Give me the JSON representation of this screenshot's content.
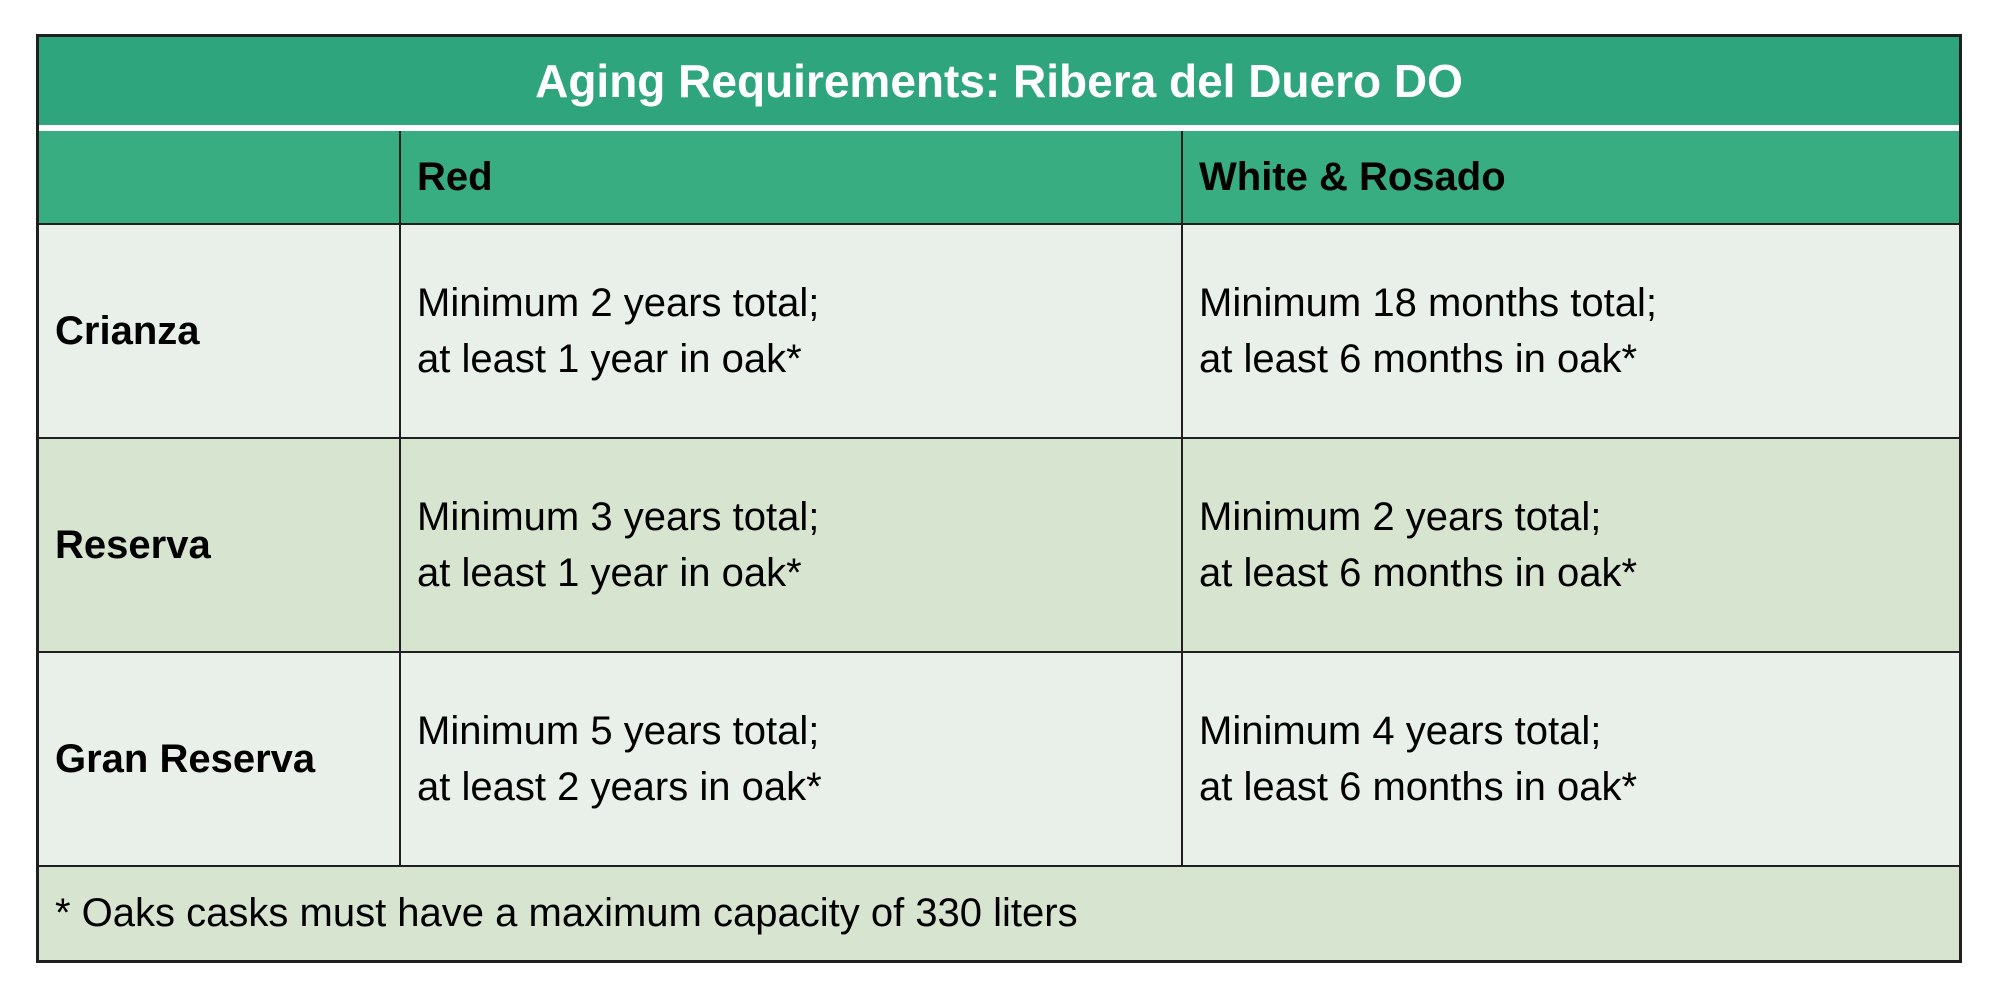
{
  "table": {
    "title": "Aging Requirements: Ribera del Duero DO",
    "headers": [
      "",
      "Red",
      "White & Rosado"
    ],
    "rows": [
      {
        "label": "Crianza",
        "red": [
          "Minimum 2 years total;",
          "at least 1 year in oak*"
        ],
        "white": [
          "Minimum 18 months total;",
          "at least 6 months in oak*"
        ]
      },
      {
        "label": "Reserva",
        "red": [
          "Minimum 3 years total;",
          "at least 1 year in oak*"
        ],
        "white": [
          "Minimum 2 years total;",
          "at least 6 months in oak*"
        ]
      },
      {
        "label": "Gran Reserva",
        "red": [
          "Minimum 5 years total;",
          "at least 2 years in oak*"
        ],
        "white": [
          "Minimum 4 years total;",
          "at least 6 months in oak*"
        ]
      }
    ],
    "footnote": "* Oaks casks must have a maximum capacity of 330 liters"
  },
  "colors": {
    "title_bg": "#2fa57d",
    "header_bg": "#38ad82",
    "row_light": "#e9efe9",
    "row_green": "#d7e4d0",
    "border": "#1f1f1f"
  }
}
